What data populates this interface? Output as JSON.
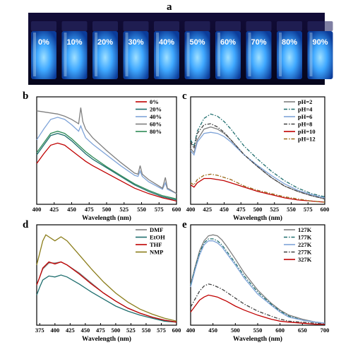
{
  "figure": {
    "panel_labels": [
      "a",
      "b",
      "c",
      "d",
      "e"
    ],
    "photo": {
      "vial_labels": [
        "0%",
        "10%",
        "20%",
        "30%",
        "40%",
        "50%",
        "60%",
        "70%",
        "80%",
        "90%"
      ],
      "background_color": "#0a0a2a",
      "glow_color": "#2f9bff"
    }
  },
  "chart_data": [
    {
      "panel": "b",
      "type": "line",
      "xlabel": "Wavelength (nm)",
      "ylabel": "",
      "xlim": [
        400,
        600
      ],
      "ylim": [
        0,
        100
      ],
      "xticks": [
        "400",
        "425",
        "450",
        "475",
        "500",
        "525",
        "550",
        "575",
        "600"
      ],
      "legend_position": "top-right",
      "series": [
        {
          "name": "0%",
          "color": "#c00000",
          "dash": "solid",
          "x": [
            400,
            410,
            420,
            430,
            440,
            450,
            460,
            470,
            480,
            500,
            520,
            540,
            560,
            580,
            600
          ],
          "y": [
            38,
            47,
            55,
            57,
            55,
            50,
            45,
            40,
            36,
            29,
            22,
            15,
            10,
            6,
            3
          ]
        },
        {
          "name": "20%",
          "color": "#1f6e6e",
          "dash": "solid",
          "x": [
            400,
            410,
            420,
            430,
            440,
            450,
            460,
            470,
            480,
            500,
            520,
            540,
            560,
            580,
            600
          ],
          "y": [
            46,
            55,
            64,
            66,
            64,
            59,
            53,
            47,
            42,
            34,
            26,
            18,
            12,
            7,
            4
          ]
        },
        {
          "name": "40%",
          "color": "#7ea3d8",
          "dash": "solid",
          "x": [
            400,
            410,
            420,
            430,
            440,
            450,
            460,
            463,
            466,
            470,
            480,
            500,
            520,
            540,
            545,
            548,
            551,
            560,
            580,
            584,
            587,
            590,
            600
          ],
          "y": [
            60,
            70,
            79,
            81,
            79,
            74,
            68,
            73,
            68,
            62,
            56,
            46,
            36,
            27,
            26,
            31,
            26,
            21,
            14,
            20,
            14,
            13,
            10
          ]
        },
        {
          "name": "60%",
          "color": "#7f7f7f",
          "dash": "solid",
          "x": [
            400,
            410,
            420,
            430,
            440,
            450,
            460,
            463,
            466,
            470,
            480,
            500,
            520,
            540,
            545,
            548,
            551,
            560,
            580,
            584,
            587,
            590,
            600
          ],
          "y": [
            87,
            86,
            85,
            84,
            82,
            79,
            75,
            90,
            77,
            70,
            62,
            50,
            39,
            29,
            28,
            36,
            28,
            23,
            15,
            25,
            15,
            14,
            10
          ]
        },
        {
          "name": "80%",
          "color": "#2e8b57",
          "dash": "solid",
          "x": [
            400,
            410,
            420,
            430,
            440,
            450,
            460,
            470,
            480,
            500,
            520,
            540,
            560,
            580,
            600
          ],
          "y": [
            48,
            57,
            66,
            68,
            66,
            61,
            55,
            49,
            44,
            35,
            27,
            19,
            13,
            8,
            5
          ]
        }
      ]
    },
    {
      "panel": "c",
      "type": "line",
      "xlabel": "Wavelength (nm)",
      "ylabel": "",
      "xlim": [
        400,
        600
      ],
      "ylim": [
        0,
        100
      ],
      "xticks": [
        "400",
        "425",
        "450",
        "475",
        "500",
        "525",
        "550",
        "575",
        "600"
      ],
      "legend_position": "top-right",
      "series": [
        {
          "name": "pH=2",
          "color": "#7f7f7f",
          "dash": "solid",
          "x": [
            400,
            405,
            410,
            420,
            430,
            440,
            450,
            460,
            470,
            480,
            500,
            520,
            540,
            560,
            580,
            600
          ],
          "y": [
            52,
            48,
            60,
            70,
            72,
            70,
            66,
            60,
            53,
            46,
            35,
            25,
            17,
            12,
            8,
            5
          ]
        },
        {
          "name": "pH=4",
          "color": "#1f6e6e",
          "dash": "dashdot",
          "x": [
            400,
            405,
            410,
            420,
            430,
            440,
            450,
            460,
            470,
            480,
            500,
            520,
            540,
            560,
            580,
            600
          ],
          "y": [
            60,
            54,
            68,
            80,
            84,
            82,
            77,
            70,
            62,
            54,
            42,
            31,
            22,
            15,
            10,
            7
          ]
        },
        {
          "name": "pH=6",
          "color": "#7ea3d8",
          "dash": "solid",
          "x": [
            400,
            405,
            410,
            420,
            430,
            440,
            450,
            460,
            470,
            480,
            500,
            520,
            540,
            560,
            580,
            600
          ],
          "y": [
            50,
            46,
            58,
            66,
            67,
            66,
            63,
            58,
            52,
            46,
            36,
            27,
            19,
            13,
            9,
            6
          ]
        },
        {
          "name": "pH=8",
          "color": "#404040",
          "dash": "dashdot",
          "x": [
            400,
            405,
            410,
            420,
            430,
            440,
            450,
            460,
            470,
            480,
            500,
            520,
            540,
            560,
            580,
            600
          ],
          "y": [
            58,
            52,
            66,
            74,
            75,
            72,
            67,
            60,
            53,
            46,
            35,
            25,
            17,
            12,
            8,
            5
          ]
        },
        {
          "name": "pH=10",
          "color": "#c00000",
          "dash": "solid",
          "x": [
            400,
            405,
            410,
            420,
            430,
            440,
            450,
            460,
            470,
            480,
            500,
            520,
            540,
            560,
            580,
            600
          ],
          "y": [
            18,
            16,
            20,
            24,
            24,
            23,
            22,
            20,
            18,
            16,
            12,
            9,
            6,
            4,
            3,
            2
          ]
        },
        {
          "name": "pH=12",
          "color": "#9a6a1a",
          "dash": "dashdot",
          "x": [
            400,
            405,
            410,
            420,
            430,
            440,
            450,
            460,
            470,
            480,
            500,
            520,
            540,
            560,
            580,
            600
          ],
          "y": [
            20,
            18,
            23,
            27,
            28,
            27,
            25,
            23,
            20,
            17,
            13,
            10,
            7,
            5,
            3,
            2
          ]
        }
      ]
    },
    {
      "panel": "d",
      "type": "line",
      "xlabel": "Wavelength (nm)",
      "ylabel": "",
      "xlim": [
        370,
        600
      ],
      "ylim": [
        0,
        100
      ],
      "xticks": [
        "375",
        "400",
        "425",
        "450",
        "475",
        "500",
        "525",
        "550",
        "575",
        "600"
      ],
      "legend_position": "top-right",
      "series": [
        {
          "name": "DMF",
          "color": "#7f7f7f",
          "dash": "solid",
          "x": [
            370,
            375,
            380,
            390,
            400,
            410,
            420,
            440,
            460,
            480,
            500,
            520,
            540,
            560,
            580,
            600
          ],
          "y": [
            40,
            48,
            56,
            62,
            62,
            63,
            60,
            52,
            42,
            32,
            24,
            17,
            12,
            8,
            5,
            3
          ]
        },
        {
          "name": "EtOH",
          "color": "#1f6e6e",
          "dash": "solid",
          "x": [
            370,
            375,
            380,
            390,
            400,
            410,
            420,
            440,
            460,
            480,
            500,
            520,
            540,
            560,
            580,
            600
          ],
          "y": [
            30,
            38,
            45,
            49,
            48,
            50,
            48,
            41,
            33,
            26,
            19,
            14,
            10,
            7,
            4,
            3
          ]
        },
        {
          "name": "THF",
          "color": "#c00000",
          "dash": "solid",
          "x": [
            370,
            375,
            380,
            390,
            400,
            410,
            420,
            440,
            460,
            480,
            500,
            520,
            540,
            560,
            580,
            600
          ],
          "y": [
            40,
            48,
            57,
            63,
            61,
            63,
            60,
            51,
            41,
            32,
            24,
            17,
            12,
            8,
            5,
            3
          ]
        },
        {
          "name": "NMP",
          "color": "#8b7d1a",
          "dash": "solid",
          "x": [
            370,
            375,
            380,
            385,
            390,
            400,
            410,
            420,
            440,
            460,
            480,
            500,
            520,
            540,
            560,
            580,
            600
          ],
          "y": [
            60,
            72,
            84,
            90,
            88,
            84,
            88,
            84,
            70,
            56,
            43,
            32,
            23,
            16,
            11,
            7,
            4
          ]
        }
      ]
    },
    {
      "panel": "e",
      "type": "line",
      "xlabel": "Wavelength (nm)",
      "ylabel": "",
      "xlim": [
        400,
        700
      ],
      "ylim": [
        0,
        100
      ],
      "xticks": [
        "400",
        "450",
        "500",
        "550",
        "600",
        "650",
        "700"
      ],
      "legend_position": "top-right",
      "series": [
        {
          "name": "127K",
          "color": "#7f7f7f",
          "dash": "solid",
          "x": [
            400,
            410,
            420,
            430,
            440,
            450,
            460,
            470,
            480,
            500,
            520,
            550,
            580,
            600,
            620,
            650,
            680,
            700
          ],
          "y": [
            40,
            58,
            74,
            84,
            89,
            90,
            89,
            85,
            79,
            66,
            52,
            35,
            22,
            15,
            10,
            6,
            3,
            2
          ]
        },
        {
          "name": "177K",
          "color": "#1f6e6e",
          "dash": "dashdot",
          "x": [
            400,
            410,
            420,
            430,
            440,
            450,
            460,
            470,
            480,
            500,
            520,
            550,
            580,
            600,
            620,
            650,
            680,
            700
          ],
          "y": [
            40,
            57,
            72,
            82,
            86,
            86,
            84,
            80,
            74,
            62,
            49,
            33,
            21,
            14,
            9,
            5,
            3,
            2
          ]
        },
        {
          "name": "227K",
          "color": "#7ea3d8",
          "dash": "solid",
          "x": [
            400,
            410,
            420,
            430,
            440,
            450,
            460,
            470,
            480,
            500,
            520,
            550,
            580,
            600,
            620,
            650,
            680,
            700
          ],
          "y": [
            38,
            55,
            70,
            80,
            84,
            84,
            82,
            78,
            72,
            60,
            47,
            31,
            20,
            13,
            8,
            5,
            3,
            2
          ]
        },
        {
          "name": "277K",
          "color": "#404040",
          "dash": "dashdot",
          "x": [
            400,
            410,
            420,
            430,
            440,
            450,
            460,
            470,
            480,
            500,
            520,
            550,
            580,
            600,
            620,
            650,
            680,
            700
          ],
          "y": [
            18,
            26,
            34,
            39,
            41,
            40,
            38,
            36,
            33,
            27,
            21,
            14,
            9,
            6,
            4,
            3,
            2,
            1
          ]
        },
        {
          "name": "327K",
          "color": "#c00000",
          "dash": "solid",
          "x": [
            400,
            410,
            420,
            430,
            440,
            450,
            460,
            470,
            480,
            500,
            520,
            550,
            580,
            600,
            620,
            650,
            680,
            700
          ],
          "y": [
            13,
            19,
            25,
            28,
            30,
            29,
            28,
            26,
            24,
            19,
            15,
            10,
            6,
            4,
            3,
            2,
            1,
            1
          ]
        }
      ]
    }
  ]
}
